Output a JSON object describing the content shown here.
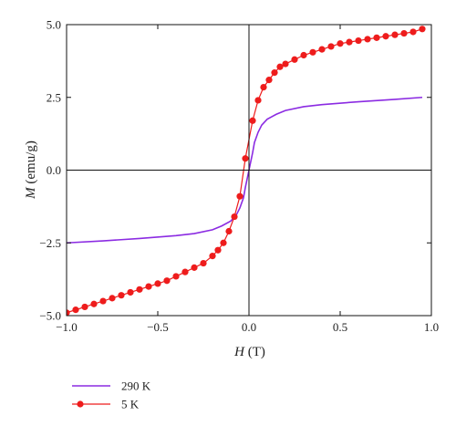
{
  "chart_data": {
    "type": "line",
    "xlabel": {
      "var": "H",
      "unit": " (T)"
    },
    "ylabel": {
      "var": "M",
      "unit": " (emu/g)"
    },
    "xlim": [
      -1.0,
      1.0
    ],
    "ylim": [
      -5.0,
      5.0
    ],
    "x_ticks": [
      -1.0,
      -0.5,
      0.0,
      0.5,
      1.0
    ],
    "x_tick_labels": [
      "−1.0",
      "−0.5",
      "0.0",
      "0.5",
      "1.0"
    ],
    "y_ticks": [
      -5.0,
      -2.5,
      0.0,
      2.5,
      5.0
    ],
    "y_tick_labels": [
      "−5.0",
      "−2.5",
      "0.0",
      "2.5",
      "5.0"
    ],
    "zero_lines": true,
    "grid": false,
    "legend_position": "below",
    "series": [
      {
        "name": "290 K",
        "color": "#8b2be2",
        "marker": "none",
        "x": [
          -1.0,
          -0.8,
          -0.6,
          -0.4,
          -0.3,
          -0.2,
          -0.15,
          -0.1,
          -0.07,
          -0.05,
          -0.03,
          -0.02,
          0.0,
          0.02,
          0.03,
          0.05,
          0.07,
          0.1,
          0.15,
          0.2,
          0.3,
          0.4,
          0.6,
          0.8,
          0.95
        ],
        "y": [
          -2.5,
          -2.43,
          -2.35,
          -2.25,
          -2.18,
          -2.05,
          -1.92,
          -1.75,
          -1.55,
          -1.3,
          -0.95,
          -0.6,
          0.0,
          0.6,
          0.95,
          1.3,
          1.55,
          1.75,
          1.92,
          2.05,
          2.18,
          2.25,
          2.35,
          2.43,
          2.5
        ]
      },
      {
        "name": "5 K",
        "color": "#ee1c1c",
        "marker": "circle",
        "x": [
          -1.0,
          -0.95,
          -0.9,
          -0.85,
          -0.8,
          -0.75,
          -0.7,
          -0.65,
          -0.6,
          -0.55,
          -0.5,
          -0.45,
          -0.4,
          -0.35,
          -0.3,
          -0.25,
          -0.2,
          -0.17,
          -0.14,
          -0.11,
          -0.08,
          -0.05,
          -0.02,
          0.02,
          0.05,
          0.08,
          0.11,
          0.14,
          0.17,
          0.2,
          0.25,
          0.3,
          0.35,
          0.4,
          0.45,
          0.5,
          0.55,
          0.6,
          0.65,
          0.7,
          0.75,
          0.8,
          0.85,
          0.9,
          0.95
        ],
        "y": [
          -4.9,
          -4.8,
          -4.7,
          -4.6,
          -4.5,
          -4.4,
          -4.3,
          -4.2,
          -4.1,
          -4.0,
          -3.9,
          -3.8,
          -3.65,
          -3.5,
          -3.35,
          -3.2,
          -2.95,
          -2.75,
          -2.5,
          -2.1,
          -1.6,
          -0.9,
          0.4,
          1.7,
          2.4,
          2.85,
          3.1,
          3.35,
          3.55,
          3.65,
          3.8,
          3.95,
          4.05,
          4.15,
          4.25,
          4.35,
          4.4,
          4.45,
          4.5,
          4.55,
          4.6,
          4.65,
          4.7,
          4.75,
          4.85
        ]
      }
    ]
  }
}
